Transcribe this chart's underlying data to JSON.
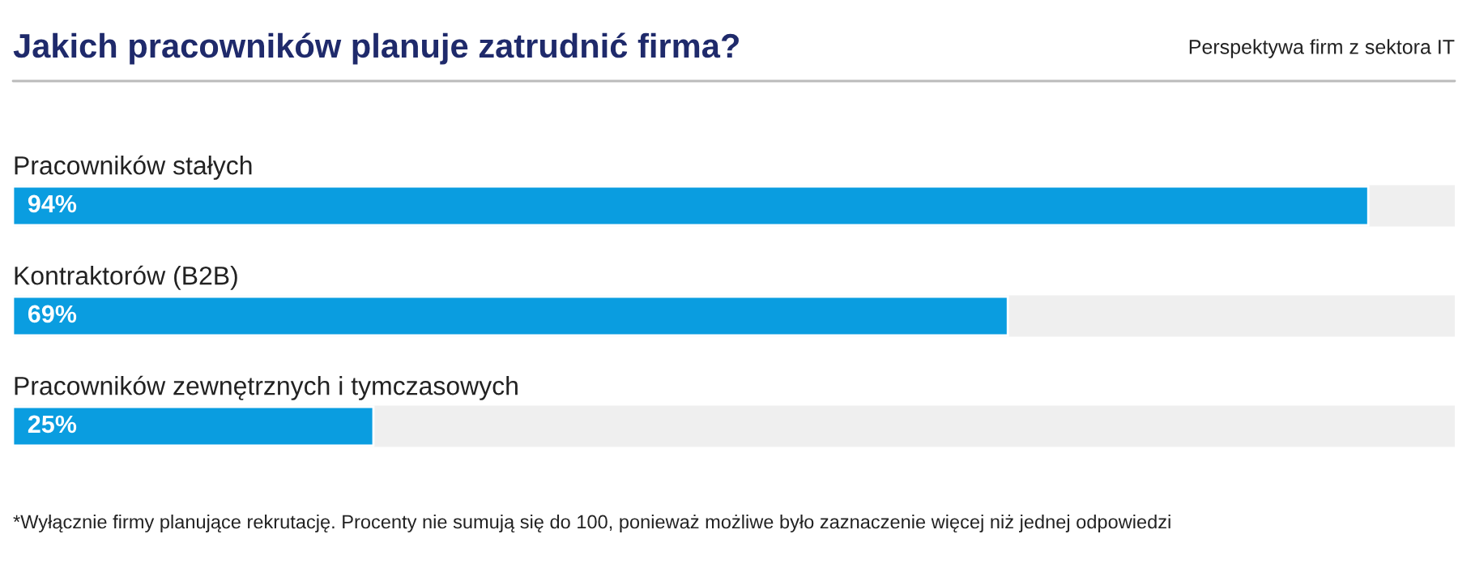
{
  "chart_data": {
    "type": "bar",
    "orientation": "horizontal",
    "title": "Jakich pracowników planuje zatrudnić firma?",
    "subtitle": "Perspektywa firm z sektora IT",
    "categories": [
      "Pracowników stałych",
      "Kontraktorów (B2B)",
      "Pracowników zewnętrznych i tymczasowych"
    ],
    "values": [
      94,
      69,
      25
    ],
    "color": "#0a9de0",
    "xlim": [
      0,
      100
    ],
    "tick_labels": false,
    "value_labels": [
      "94%",
      "69%",
      "25%"
    ],
    "annotations": [
      "*Wyłącznie firmy planujące rekrutację. Procenty nie sumują się do 100, ponieważ możliwe było zaznaczenie więcej niż jednej odpowiedzi"
    ]
  }
}
